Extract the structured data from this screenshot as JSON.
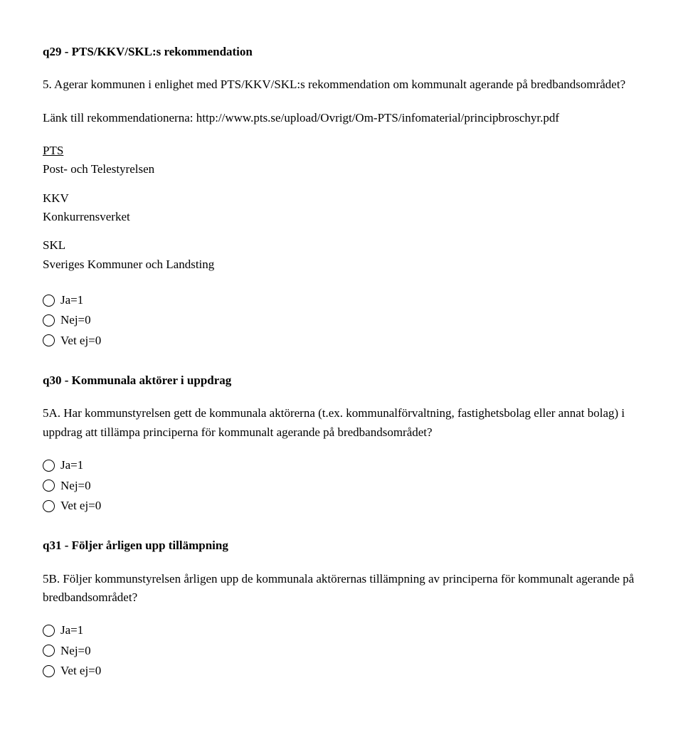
{
  "q29": {
    "heading": "q29 - PTS/KKV/SKL:s rekommendation",
    "question": "5. Agerar kommunen i enlighet med PTS/KKV/SKL:s rekommendation om kommunalt agerande på bredbandsområdet?",
    "link_label": "Länk till rekommendationerna:",
    "link_url": "http://www.pts.se/upload/Ovrigt/Om-PTS/infomaterial/principbroschyr.pdf",
    "defs": [
      {
        "abbrev_pre": " ",
        "abbrev": "PTS",
        "full": "Post- och Telestyrelsen",
        "underline_abbrev": true
      },
      {
        "abbrev_pre": "",
        "abbrev": "KKV",
        "full": "Konkurrensverket",
        "underline_abbrev": false
      },
      {
        "abbrev_pre": "",
        "abbrev": "SKL",
        "full": "Sveriges Kommuner och Landsting",
        "underline_abbrev": false
      }
    ],
    "options": [
      {
        "label": "Ja=1"
      },
      {
        "label": "Nej=0"
      },
      {
        "label": "Vet ej=0"
      }
    ]
  },
  "q30": {
    "heading": "q30 - Kommunala aktörer i uppdrag",
    "question": "5A. Har kommunstyrelsen gett de kommunala aktörerna (t.ex. kommunalförvaltning, fastighetsbolag eller annat bolag) i uppdrag att tillämpa principerna för kommunalt agerande på bredbandsområdet?",
    "options": [
      {
        "label": "Ja=1"
      },
      {
        "label": "Nej=0"
      },
      {
        "label": "Vet ej=0"
      }
    ]
  },
  "q31": {
    "heading": "q31 - Följer årligen upp tillämpning",
    "question": "5B. Följer kommunstyrelsen årligen upp de kommunala aktörernas tillämpning av principerna för kommunalt agerande på bredbandsområdet?",
    "options": [
      {
        "label": "Ja=1"
      },
      {
        "label": "Nej=0"
      },
      {
        "label": "Vet ej=0"
      }
    ]
  }
}
